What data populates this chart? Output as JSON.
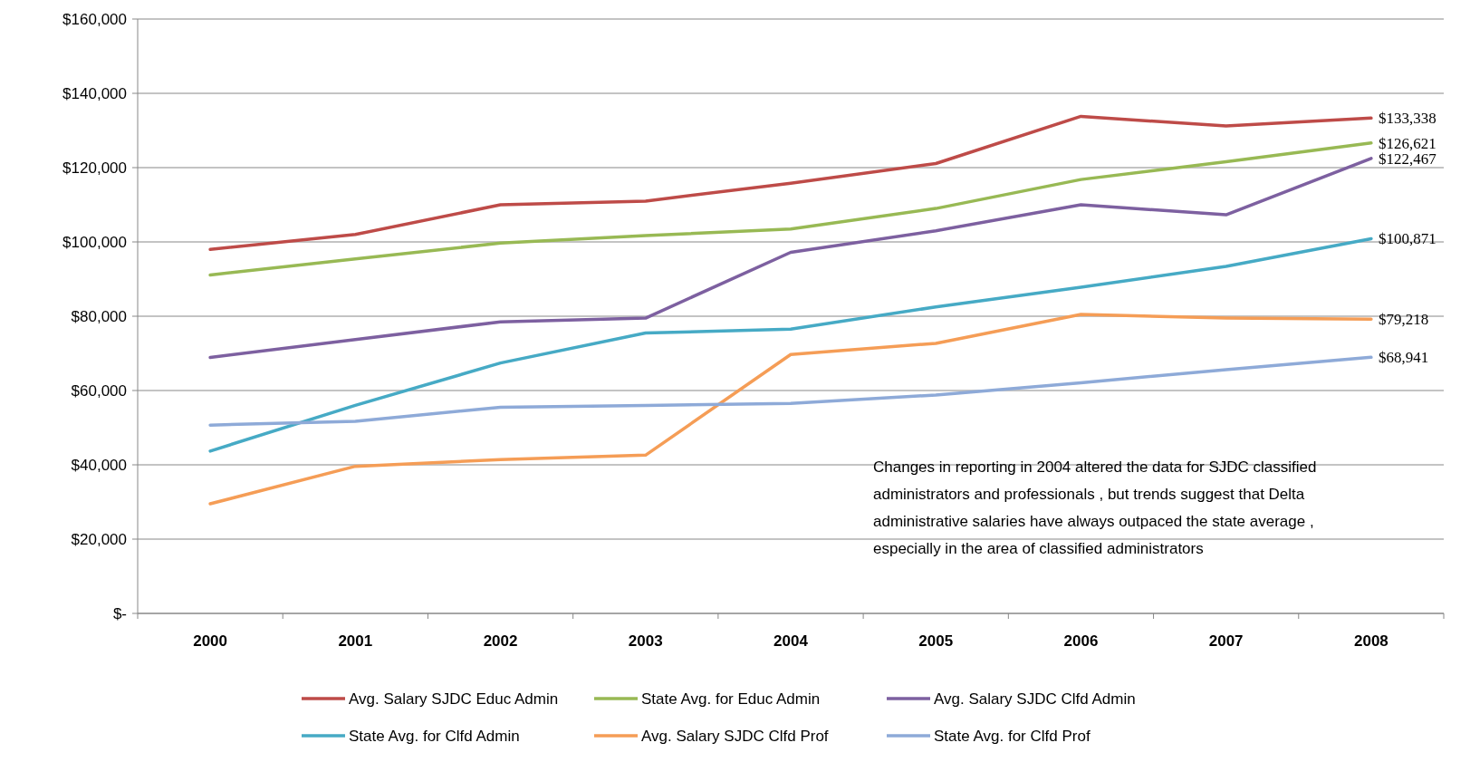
{
  "chart_data": {
    "type": "line",
    "categories": [
      "2000",
      "2001",
      "2002",
      "2003",
      "2004",
      "2005",
      "2006",
      "2007",
      "2008"
    ],
    "ylim": [
      0,
      160000
    ],
    "yticks": [
      {
        "value": 0,
        "label": "$-"
      },
      {
        "value": 20000,
        "label": "$20,000"
      },
      {
        "value": 40000,
        "label": "$40,000"
      },
      {
        "value": 60000,
        "label": "$60,000"
      },
      {
        "value": 80000,
        "label": "$80,000"
      },
      {
        "value": 100000,
        "label": "$100,000"
      },
      {
        "value": 120000,
        "label": "$120,000"
      },
      {
        "value": 140000,
        "label": "$140,000"
      },
      {
        "value": 160000,
        "label": "$160,000"
      }
    ],
    "grid": "y",
    "legend": "bottom",
    "marker": "none",
    "line_style": "solid",
    "series": [
      {
        "name": "Avg. Salary SJDC Educ Admin",
        "color": "#be4b48",
        "values": [
          98000,
          102000,
          110000,
          111000,
          115800,
          121100,
          133800,
          131200,
          133338
        ],
        "value_labels": [
          null,
          null,
          null,
          null,
          null,
          null,
          null,
          null,
          "$133,338"
        ]
      },
      {
        "name": "State Avg. for Educ Admin",
        "color": "#98b954",
        "values": [
          91100,
          95400,
          99700,
          101700,
          103500,
          109000,
          116800,
          121600,
          126621
        ],
        "value_labels": [
          null,
          null,
          null,
          null,
          null,
          null,
          null,
          null,
          "$126,621"
        ]
      },
      {
        "name": "Avg. Salary SJDC Clfd Admin",
        "color": "#7d60a0",
        "values": [
          68900,
          73700,
          78500,
          79500,
          97200,
          103000,
          110000,
          107300,
          122467
        ],
        "value_labels": [
          null,
          null,
          null,
          null,
          null,
          null,
          null,
          null,
          "$122,467"
        ]
      },
      {
        "name": "State Avg. for Clfd Admin",
        "color": "#46aac5",
        "values": [
          43700,
          56000,
          67400,
          75500,
          76500,
          82500,
          87800,
          93400,
          100871
        ],
        "value_labels": [
          null,
          null,
          null,
          null,
          null,
          null,
          null,
          null,
          "$100,871"
        ]
      },
      {
        "name": "Avg. Salary SJDC Clfd Prof",
        "color": "#f59d56",
        "values": [
          29500,
          39600,
          41400,
          42600,
          69700,
          72700,
          80500,
          79500,
          79218
        ],
        "value_labels": [
          null,
          null,
          null,
          null,
          null,
          null,
          null,
          null,
          "$79,218"
        ]
      },
      {
        "name": "State Avg. for Clfd Prof",
        "color": "#8eaad8",
        "values": [
          50700,
          51700,
          55500,
          56000,
          56500,
          58800,
          62100,
          65600,
          68941
        ],
        "value_labels": [
          null,
          null,
          null,
          null,
          null,
          null,
          null,
          null,
          "$68,941"
        ]
      }
    ],
    "annotations": [
      "Changes in reporting in 2004 altered the data for SJDC classified administrators  and professionals , but trends suggest that Delta administrative  salaries have always outpaced the state average , especially in the area of classified administrators"
    ]
  }
}
